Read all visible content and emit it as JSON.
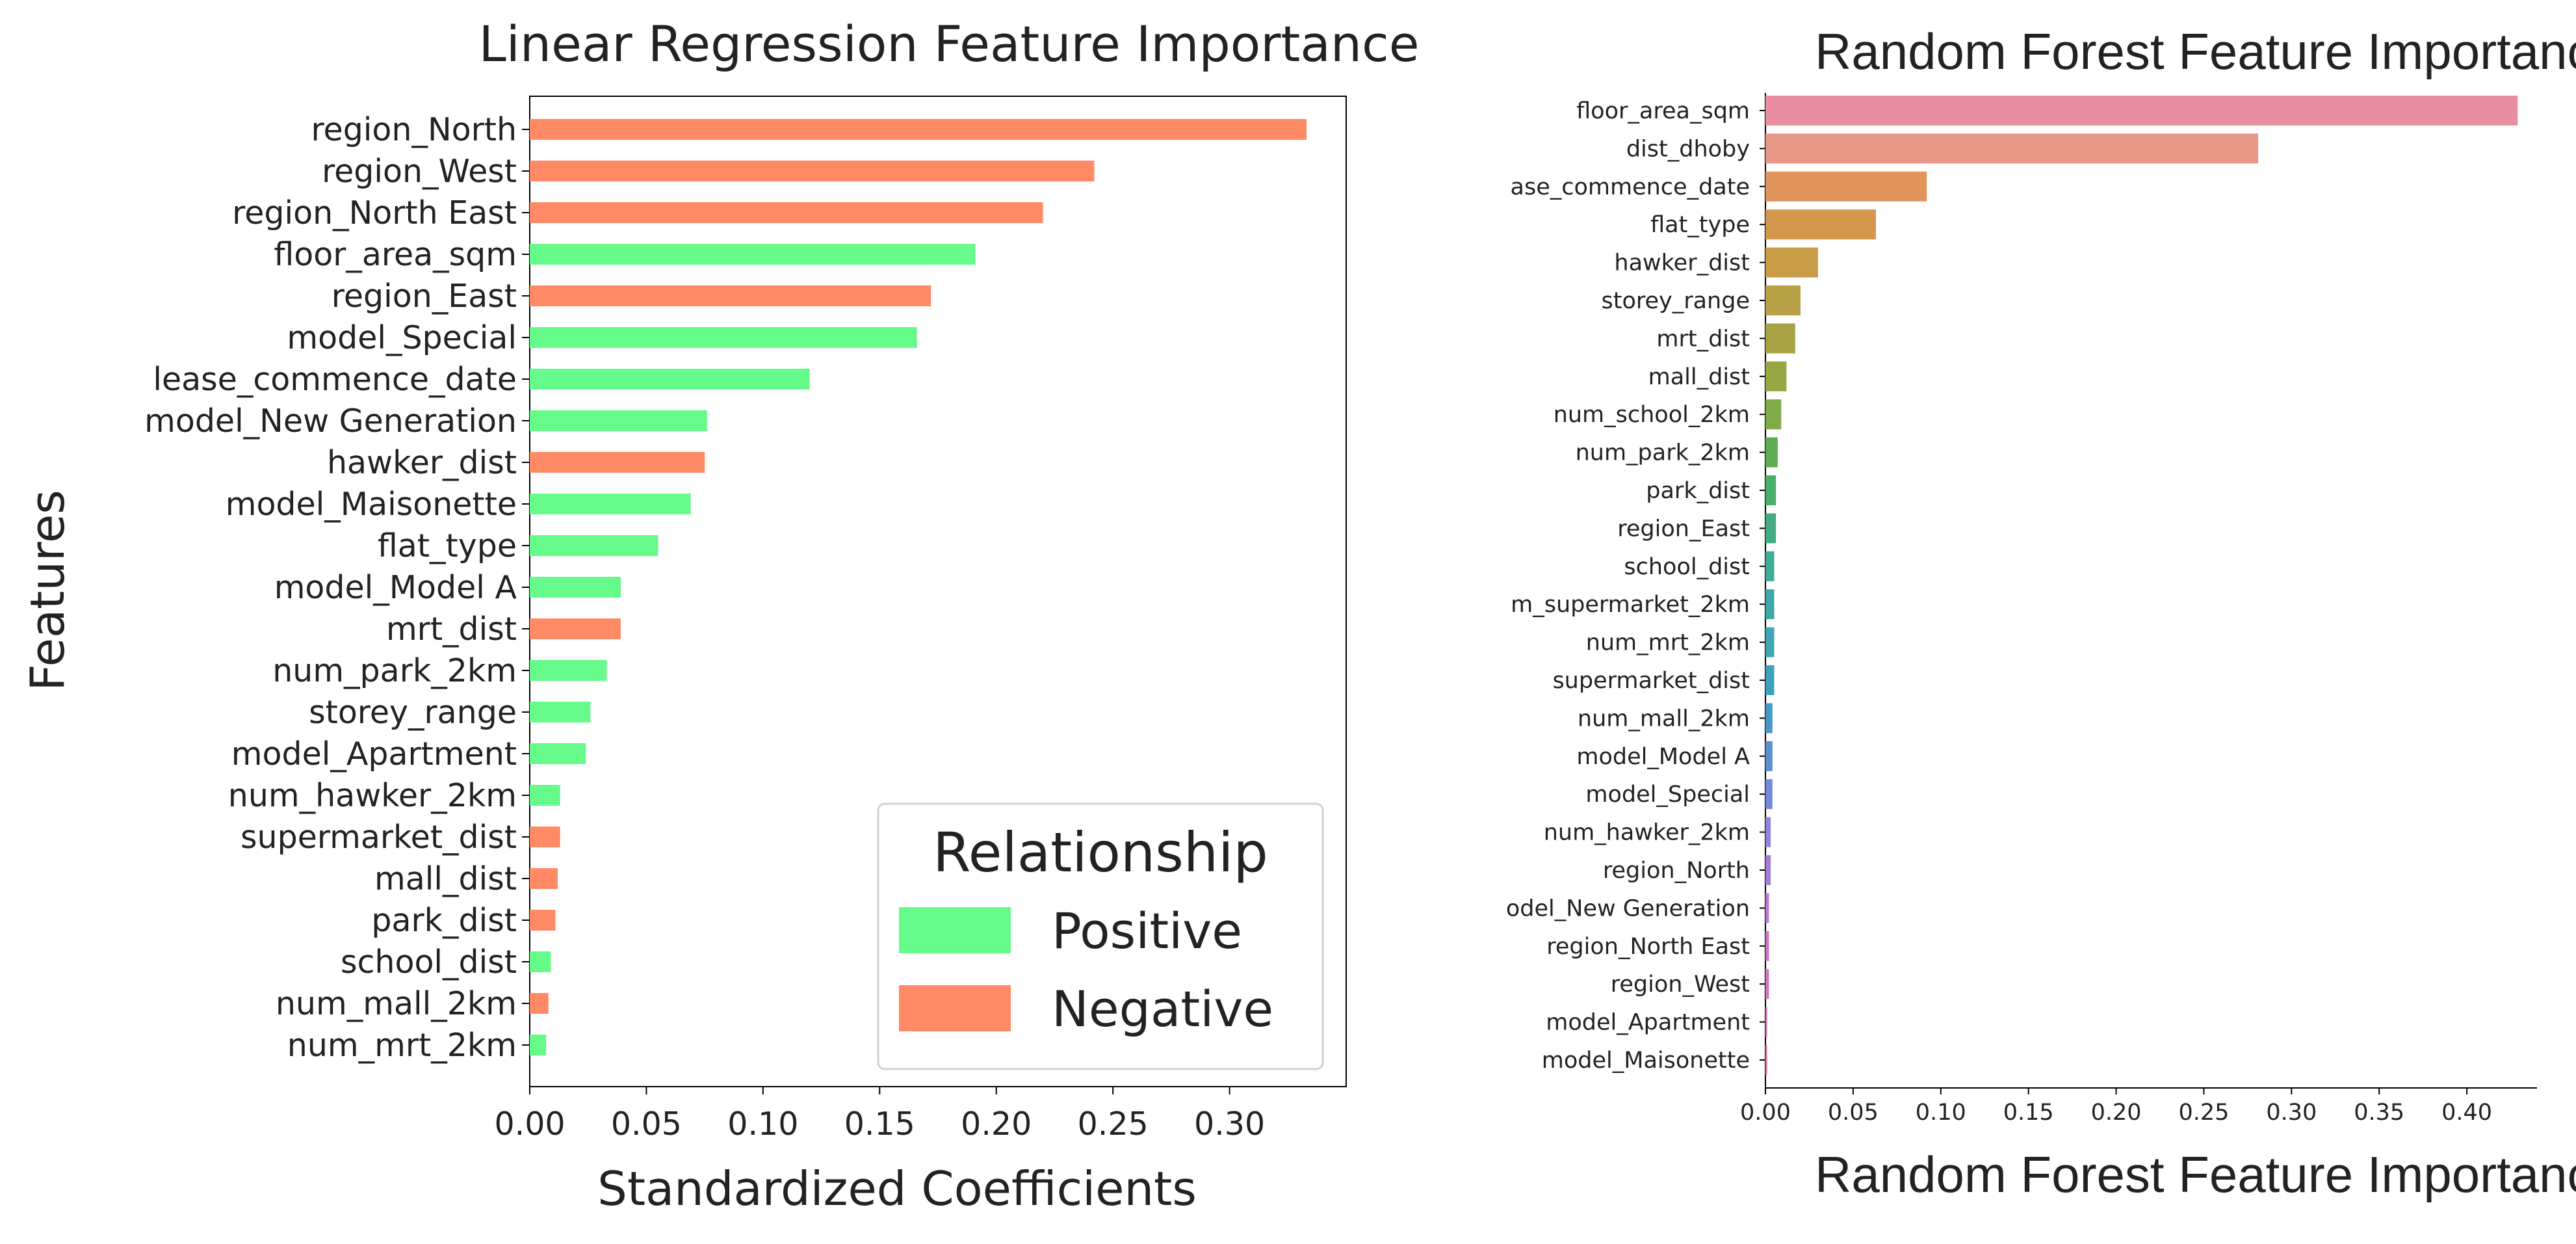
{
  "chart_data": [
    {
      "type": "bar",
      "orientation": "horizontal",
      "title": "Linear Regression Feature Importance",
      "xlabel": "Standardized Coefficients",
      "ylabel": "Features",
      "xlim": [
        0,
        0.35
      ],
      "xticks": [
        "0.00",
        "0.05",
        "0.10",
        "0.15",
        "0.20",
        "0.25",
        "0.30"
      ],
      "grid": false,
      "legend": {
        "title": "Relationship",
        "placement": "bottom-right",
        "entries": [
          {
            "label": "Positive",
            "color": "#66fa8a"
          },
          {
            "label": "Negative",
            "color": "#ff8a65"
          }
        ]
      },
      "categories": [
        "region_North",
        "region_West",
        "region_North East",
        "floor_area_sqm",
        "region_East",
        "model_Special",
        "lease_commence_date",
        "model_New Generation",
        "hawker_dist",
        "model_Maisonette",
        "flat_type",
        "model_Model A",
        "mrt_dist",
        "num_park_2km",
        "storey_range",
        "model_Apartment",
        "num_hawker_2km",
        "supermarket_dist",
        "mall_dist",
        "park_dist",
        "school_dist",
        "num_mall_2km",
        "num_mrt_2km"
      ],
      "values": [
        0.333,
        0.242,
        0.22,
        0.191,
        0.172,
        0.166,
        0.12,
        0.076,
        0.075,
        0.069,
        0.055,
        0.039,
        0.039,
        0.033,
        0.026,
        0.024,
        0.013,
        0.013,
        0.012,
        0.011,
        0.009,
        0.008,
        0.007
      ],
      "relationship": [
        "Negative",
        "Negative",
        "Negative",
        "Positive",
        "Negative",
        "Positive",
        "Positive",
        "Positive",
        "Negative",
        "Positive",
        "Positive",
        "Positive",
        "Negative",
        "Positive",
        "Positive",
        "Positive",
        "Positive",
        "Negative",
        "Negative",
        "Negative",
        "Positive",
        "Negative",
        "Positive"
      ]
    },
    {
      "type": "bar",
      "orientation": "horizontal",
      "title": "Random Forest Feature Importance",
      "xlabel": "Random Forest Feature Importance",
      "xlim": [
        0,
        0.44
      ],
      "xticks": [
        "0.00",
        "0.05",
        "0.10",
        "0.15",
        "0.20",
        "0.25",
        "0.30",
        "0.35",
        "0.40"
      ],
      "grid": false,
      "categories": [
        "floor_area_sqm",
        "dist_dhoby",
        "ase_commence_date",
        "flat_type",
        "hawker_dist",
        "storey_range",
        "mrt_dist",
        "mall_dist",
        "num_school_2km",
        "num_park_2km",
        "park_dist",
        "region_East",
        "school_dist",
        "m_supermarket_2km",
        "num_mrt_2km",
        "supermarket_dist",
        "num_mall_2km",
        "model_Model A",
        "model_Special",
        "num_hawker_2km",
        "region_North",
        "odel_New Generation",
        "region_North East",
        "region_West",
        "model_Apartment",
        "model_Maisonette"
      ],
      "values": [
        0.429,
        0.281,
        0.092,
        0.063,
        0.03,
        0.02,
        0.017,
        0.012,
        0.009,
        0.007,
        0.006,
        0.006,
        0.005,
        0.005,
        0.005,
        0.005,
        0.004,
        0.004,
        0.004,
        0.003,
        0.003,
        0.002,
        0.002,
        0.002,
        0.001,
        0.001
      ],
      "colors": [
        "#e88ea0",
        "#e89686",
        "#e0945a",
        "#d2974a",
        "#c99c48",
        "#b8a248",
        "#a8a445",
        "#98a743",
        "#7fab47",
        "#5fad52",
        "#4bad6a",
        "#43ac84",
        "#3fab98",
        "#3ea8a6",
        "#3fa5b2",
        "#40a1be",
        "#4698c8",
        "#5a8fd0",
        "#738bd6",
        "#8f84d8",
        "#a47ed6",
        "#b87ad2",
        "#c877cc",
        "#d475c2",
        "#dd77b4",
        "#e47ba8"
      ]
    }
  ]
}
